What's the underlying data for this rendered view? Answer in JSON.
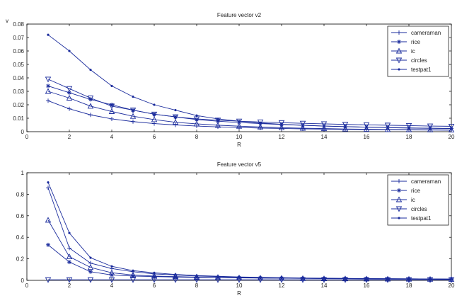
{
  "charts": [
    {
      "type": "line",
      "title": "Feature vector v2",
      "xlabel": "R",
      "ylabel": "v",
      "xlim": [
        0,
        20
      ],
      "ylim": [
        0,
        0.08
      ],
      "xticks": [
        "0",
        "2",
        "4",
        "6",
        "8",
        "10",
        "12",
        "14",
        "16",
        "18",
        "20"
      ],
      "yticks": [
        "0",
        "0.01",
        "0.02",
        "0.03",
        "0.04",
        "0.05",
        "0.06",
        "0.07",
        "0.08"
      ],
      "legend_position": "top-right",
      "x": [
        1,
        2,
        3,
        4,
        5,
        6,
        7,
        8,
        9,
        10,
        11,
        12,
        13,
        14,
        15,
        16,
        17,
        18,
        19,
        20
      ],
      "series": [
        {
          "name": "cameraman",
          "marker": "plus",
          "values": [
            0.023,
            0.017,
            0.0125,
            0.0095,
            0.0075,
            0.006,
            0.005,
            0.0042,
            0.0036,
            0.0031,
            0.0027,
            0.0024,
            0.0021,
            0.0019,
            0.0017,
            0.0015,
            0.0014,
            0.0013,
            0.0012,
            0.0011
          ]
        },
        {
          "name": "rice",
          "marker": "star",
          "values": [
            0.034,
            0.029,
            0.024,
            0.02,
            0.016,
            0.013,
            0.011,
            0.009,
            0.0078,
            0.0068,
            0.006,
            0.0053,
            0.0047,
            0.0042,
            0.0038,
            0.0034,
            0.0031,
            0.0028,
            0.0026,
            0.0024
          ]
        },
        {
          "name": "ic",
          "marker": "triangle-up",
          "values": [
            0.03,
            0.025,
            0.019,
            0.015,
            0.0115,
            0.009,
            0.007,
            0.0058,
            0.0048,
            0.0041,
            0.0035,
            0.003,
            0.0026,
            0.0023,
            0.002,
            0.0018,
            0.0016,
            0.0015,
            0.0014,
            0.0013
          ]
        },
        {
          "name": "circles",
          "marker": "triangle-down",
          "values": [
            0.039,
            0.032,
            0.025,
            0.019,
            0.016,
            0.013,
            0.011,
            0.0095,
            0.0085,
            0.0078,
            0.0072,
            0.0067,
            0.0062,
            0.0058,
            0.0054,
            0.0051,
            0.0048,
            0.0045,
            0.0042,
            0.004
          ]
        },
        {
          "name": "testpat1",
          "marker": "dot",
          "values": [
            0.072,
            0.06,
            0.046,
            0.034,
            0.026,
            0.02,
            0.016,
            0.012,
            0.0095,
            0.0078,
            0.0065,
            0.0055,
            0.0048,
            0.0042,
            0.0037,
            0.0033,
            0.003,
            0.0027,
            0.0025,
            0.0023
          ]
        }
      ]
    },
    {
      "type": "line",
      "title": "Feature vector v5",
      "xlabel": "R",
      "ylabel": "",
      "xlim": [
        0,
        20
      ],
      "ylim": [
        0,
        1
      ],
      "xticks": [
        "0",
        "2",
        "4",
        "6",
        "8",
        "10",
        "12",
        "14",
        "16",
        "18",
        "20"
      ],
      "yticks": [
        "0",
        "0.2",
        "0.4",
        "0.6",
        "0.8",
        "1"
      ],
      "legend_position": "top-right",
      "x": [
        1,
        2,
        3,
        4,
        5,
        6,
        7,
        8,
        9,
        10,
        11,
        12,
        13,
        14,
        15,
        16,
        17,
        18,
        19,
        20
      ],
      "series": [
        {
          "name": "cameraman",
          "marker": "plus",
          "values": [
            0.86,
            0.3,
            0.16,
            0.11,
            0.08,
            0.06,
            0.05,
            0.04,
            0.035,
            0.03,
            0.025,
            0.022,
            0.02,
            0.018,
            0.016,
            0.015,
            0.014,
            0.013,
            0.012,
            0.011
          ]
        },
        {
          "name": "rice",
          "marker": "star",
          "values": [
            0.33,
            0.17,
            0.08,
            0.05,
            0.04,
            0.035,
            0.03,
            0.027,
            0.025,
            0.023,
            0.021,
            0.02,
            0.019,
            0.018,
            0.017,
            0.016,
            0.015,
            0.014,
            0.013,
            0.012
          ]
        },
        {
          "name": "ic",
          "marker": "triangle-up",
          "values": [
            0.56,
            0.22,
            0.12,
            0.07,
            0.05,
            0.04,
            0.035,
            0.03,
            0.027,
            0.024,
            0.022,
            0.02,
            0.018,
            0.016,
            0.015,
            0.014,
            0.013,
            0.012,
            0.011,
            0.01
          ]
        },
        {
          "name": "circles",
          "marker": "triangle-down",
          "values": [
            0.005,
            0.005,
            0.005,
            0.005,
            0.005,
            0.005,
            0.005,
            0.005,
            0.005,
            0.005,
            0.005,
            0.005,
            0.005,
            0.005,
            0.005,
            0.005,
            0.005,
            0.005,
            0.005,
            0.005
          ]
        },
        {
          "name": "testpat1",
          "marker": "dot",
          "values": [
            0.91,
            0.44,
            0.21,
            0.13,
            0.09,
            0.07,
            0.055,
            0.045,
            0.038,
            0.032,
            0.028,
            0.025,
            0.022,
            0.02,
            0.018,
            0.016,
            0.015,
            0.014,
            0.013,
            0.012
          ]
        }
      ]
    }
  ],
  "colors": {
    "line": "#1a2b9c",
    "axis": "#000000",
    "background": "#ffffff"
  }
}
